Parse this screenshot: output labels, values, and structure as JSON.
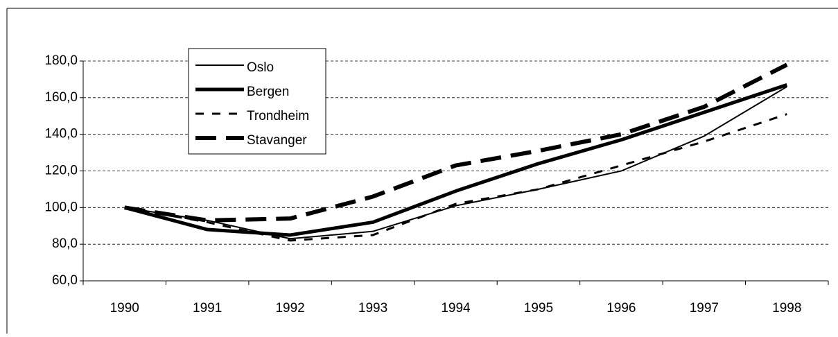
{
  "chart_data": {
    "type": "line",
    "categories": [
      "1990",
      "1991",
      "1992",
      "1993",
      "1994",
      "1995",
      "1996",
      "1997",
      "1998"
    ],
    "series": [
      {
        "name": "Oslo",
        "color": "#000000",
        "values": [
          100,
          93,
          83,
          87,
          101,
          110,
          120,
          139,
          166
        ]
      },
      {
        "name": "Bergen",
        "color": "#000000",
        "values": [
          100,
          88,
          85,
          92,
          109,
          124,
          137,
          152,
          167
        ]
      },
      {
        "name": "Trondheim",
        "color": "#000000",
        "values": [
          100,
          92,
          82,
          85,
          102,
          110,
          123,
          136,
          151
        ]
      },
      {
        "name": "Stavanger",
        "color": "#000000",
        "values": [
          100,
          93,
          94,
          106,
          123,
          131,
          140,
          155,
          178
        ]
      }
    ],
    "ylim": [
      60,
      180
    ],
    "yticks": [
      {
        "value": 60,
        "label": "60,0"
      },
      {
        "value": 80,
        "label": "80,0"
      },
      {
        "value": 100,
        "label": "100,0"
      },
      {
        "value": 120,
        "label": "120,0"
      },
      {
        "value": 140,
        "label": "140,0"
      },
      {
        "value": 160,
        "label": "160,0"
      },
      {
        "value": 180,
        "label": "180,0"
      }
    ],
    "grid": true,
    "legend": "upper left"
  }
}
